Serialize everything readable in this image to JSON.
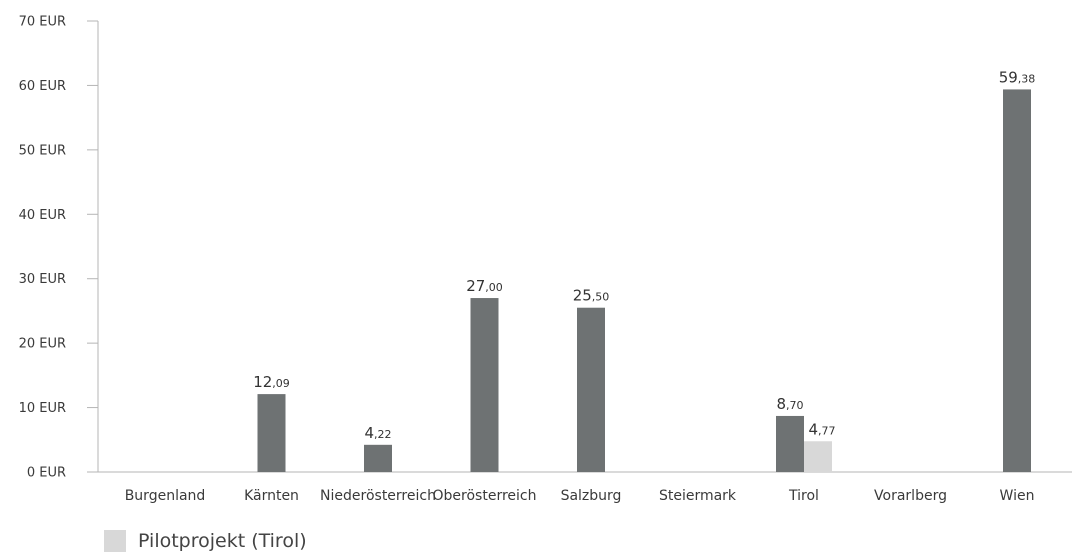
{
  "chart_data": {
    "type": "bar",
    "categories": [
      "Burgenland",
      "Kärnten",
      "Niederösterreich",
      "Oberösterreich",
      "Salzburg",
      "Steiermark",
      "Tirol",
      "Vorarlberg",
      "Wien"
    ],
    "series": [
      {
        "values": [
          null,
          12.09,
          4.22,
          27.0,
          25.5,
          null,
          8.7,
          null,
          59.38
        ],
        "color": "#6e7273"
      },
      {
        "name": "Pilotprojekt (Tirol)",
        "values": [
          null,
          null,
          null,
          null,
          null,
          null,
          4.77,
          null,
          null
        ],
        "color": "#d8d8d8"
      }
    ],
    "yticks": [
      "0 EUR",
      "10 EUR",
      "20 EUR",
      "30 EUR",
      "40 EUR",
      "50 EUR",
      "60 EUR",
      "70 EUR"
    ],
    "ylim": [
      0,
      70
    ],
    "value_labels": {
      "1": [
        "12",
        ",09"
      ],
      "2": [
        "4",
        ",22"
      ],
      "3": [
        "27",
        ",00"
      ],
      "4": [
        "25",
        ",50"
      ],
      "6": [
        "8",
        ",70"
      ],
      "8": [
        "59",
        ",38"
      ]
    },
    "pilot_value_label": [
      "4",
      ",77"
    ],
    "legend": {
      "label": "Pilotprojekt (Tirol)",
      "position": "bottom-left"
    }
  }
}
